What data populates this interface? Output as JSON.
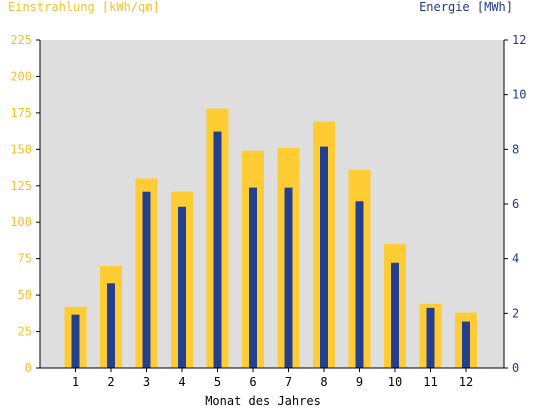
{
  "chart_data": {
    "type": "bar",
    "xlabel": "Monat des Jahres",
    "y_left_label": "Einstrahlung [kWh/qm]",
    "y_right_label": "Energie [MWh]",
    "categories": [
      "1",
      "2",
      "3",
      "4",
      "5",
      "6",
      "7",
      "8",
      "9",
      "10",
      "11",
      "12"
    ],
    "ylim_left": [
      0,
      225
    ],
    "ylim_right": [
      0,
      12
    ],
    "yticks_left": [
      "0",
      "25",
      "50",
      "75",
      "100",
      "125",
      "150",
      "175",
      "200",
      "225"
    ],
    "yticks_right": [
      "0",
      "2",
      "4",
      "6",
      "8",
      "10",
      "12"
    ],
    "grid": false,
    "series": [
      {
        "name": "Einstrahlung [kWh/qm]",
        "axis": "left",
        "color": "#ffcc33",
        "values": [
          42,
          70,
          130,
          121,
          178,
          149,
          151,
          169,
          136,
          85,
          44,
          38
        ]
      },
      {
        "name": "Energie [MWh]",
        "axis": "right",
        "color": "#23408e",
        "values": [
          1.95,
          3.1,
          6.45,
          5.9,
          8.65,
          6.6,
          6.6,
          8.1,
          6.1,
          3.85,
          2.2,
          1.7
        ]
      }
    ],
    "colors": {
      "plot_background": "#dedede",
      "left_axis_text": "#f2c12e",
      "right_axis_text": "#1f3a8a"
    }
  }
}
